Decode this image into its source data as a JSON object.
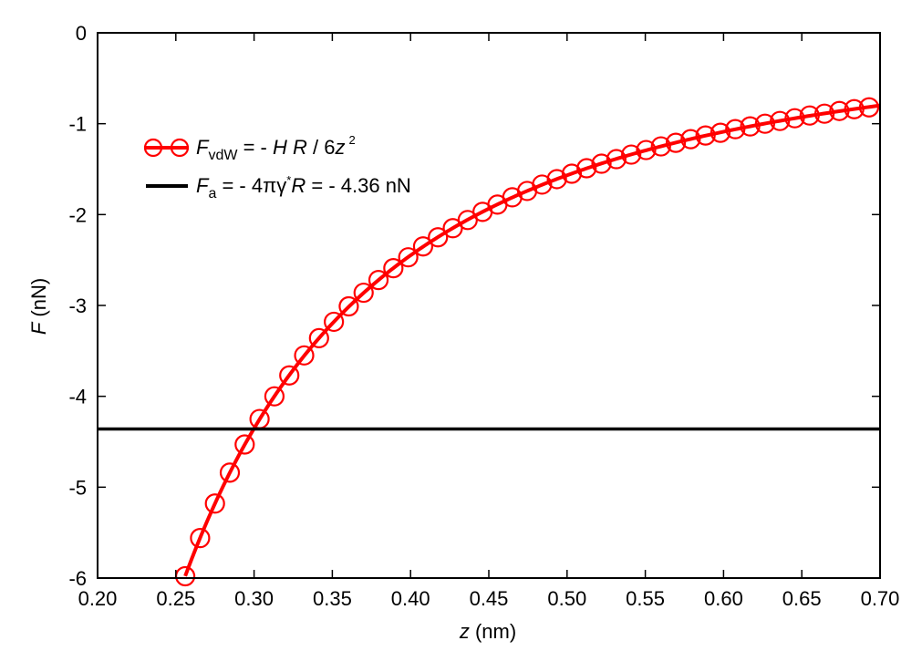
{
  "chart_data": {
    "type": "line",
    "xlabel": {
      "symbol": "z",
      "unit": " (nm)"
    },
    "ylabel": {
      "symbol": "F",
      "unit": " (nN)"
    },
    "xlim": [
      0.2,
      0.7
    ],
    "ylim": [
      -6,
      0
    ],
    "xticks": [
      0.2,
      0.25,
      0.3,
      0.35,
      0.4,
      0.45,
      0.5,
      0.55,
      0.6,
      0.65,
      0.7
    ],
    "xtick_labels": [
      "0.20",
      "0.25",
      "0.30",
      "0.35",
      "0.40",
      "0.45",
      "0.50",
      "0.55",
      "0.60",
      "0.65",
      "0.70"
    ],
    "yticks": [
      0,
      -1,
      -2,
      -3,
      -4,
      -5,
      -6
    ],
    "ytick_labels": [
      "0",
      "-1",
      "-2",
      "-3",
      "-4",
      "-5",
      "-6"
    ],
    "grid": false,
    "legend_position": "top-left",
    "series": [
      {
        "name_parts": {
          "sym": "F",
          "sub": "vdW",
          "mid": " = - ",
          "h": "H",
          "gap": " ",
          "r": "R",
          "tail": " / 6",
          "z": "z",
          "sup": "2"
        },
        "kind": "curve-with-markers",
        "color": "#ff0000",
        "formula_coefficient": 0.3918,
        "x": [
          0.256,
          0.2655,
          0.275,
          0.2845,
          0.294,
          0.3035,
          0.313,
          0.3225,
          0.332,
          0.3415,
          0.351,
          0.3605,
          0.37,
          0.3795,
          0.389,
          0.3985,
          0.408,
          0.4175,
          0.427,
          0.4365,
          0.446,
          0.4555,
          0.465,
          0.4745,
          0.484,
          0.4935,
          0.503,
          0.5125,
          0.522,
          0.5315,
          0.541,
          0.5505,
          0.56,
          0.5695,
          0.579,
          0.5885,
          0.598,
          0.6075,
          0.617,
          0.6265,
          0.636,
          0.6455,
          0.655,
          0.6645,
          0.674,
          0.6835,
          0.693
        ],
        "y": [
          -5.98,
          -5.56,
          -5.18,
          -4.84,
          -4.53,
          -4.25,
          -4.0,
          -3.77,
          -3.55,
          -3.36,
          -3.18,
          -3.01,
          -2.86,
          -2.72,
          -2.59,
          -2.47,
          -2.35,
          -2.25,
          -2.15,
          -2.06,
          -1.97,
          -1.89,
          -1.81,
          -1.74,
          -1.67,
          -1.61,
          -1.55,
          -1.49,
          -1.44,
          -1.39,
          -1.34,
          -1.29,
          -1.25,
          -1.21,
          -1.17,
          -1.13,
          -1.1,
          -1.06,
          -1.03,
          -1.0,
          -0.97,
          -0.94,
          -0.91,
          -0.89,
          -0.86,
          -0.84,
          -0.82
        ]
      },
      {
        "name_parts": {
          "sym": "F",
          "sub": "a",
          "mid": " = - 4πγ",
          "sup": "*",
          "r": "R",
          "tail": " = - 4.36 nN"
        },
        "kind": "horizontal-line",
        "color": "#000000",
        "value": -4.36
      }
    ]
  }
}
